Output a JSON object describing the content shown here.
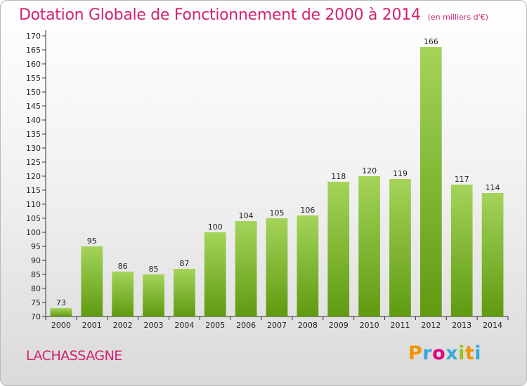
{
  "header": {
    "title": "Dotation Globale de Fonctionnement de 2000 à 2014",
    "subtitle": "(en milliers d'€)"
  },
  "footer": {
    "town": "LACHASSAGNE",
    "logo_letters": [
      "P",
      "r",
      "o",
      "x",
      "i",
      "t",
      "i"
    ],
    "logo_colors": [
      "#f29400",
      "#3aa8d8",
      "#e4007d",
      "#3aa8d8",
      "#95c11f",
      "#f29400",
      "#3aa8d8"
    ]
  },
  "colors": {
    "title": "#d2236f",
    "bar_light": "#a4d45a",
    "bar_dark": "#5f9a10"
  },
  "chart_data": {
    "type": "bar",
    "title": "Dotation Globale de Fonctionnement de 2000 à 2014",
    "subtitle": "(en milliers d'€)",
    "categories": [
      "2000",
      "2001",
      "2002",
      "2003",
      "2004",
      "2005",
      "2006",
      "2007",
      "2008",
      "2009",
      "2010",
      "2011",
      "2012",
      "2013",
      "2014"
    ],
    "values": [
      73,
      95,
      86,
      85,
      87,
      100,
      104,
      105,
      106,
      118,
      120,
      119,
      166,
      117,
      114
    ],
    "ylim": [
      70,
      170
    ],
    "ytick_step": 5,
    "grid": false,
    "legend": "none"
  }
}
